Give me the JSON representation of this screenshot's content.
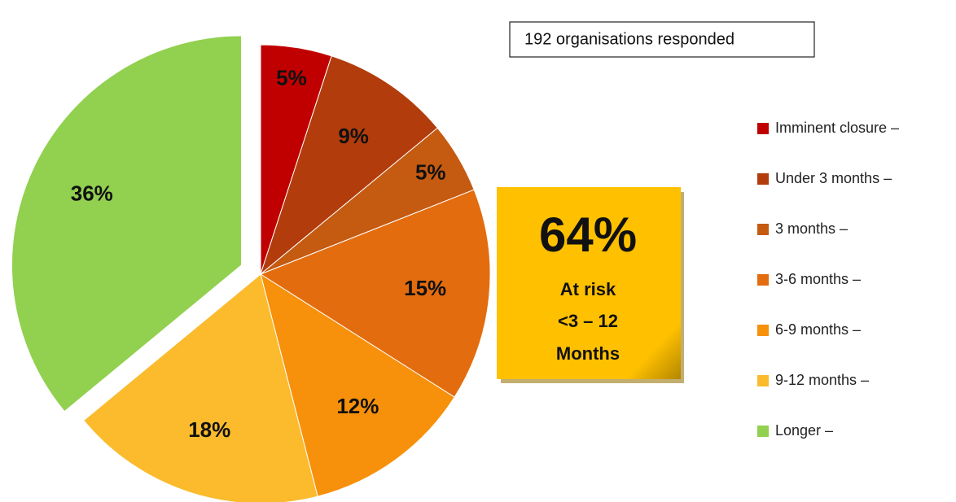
{
  "chart_data": {
    "type": "pie",
    "categories": [
      "Imminent closure –",
      "Under 3 months –",
      "3 months –",
      "3-6 months –",
      "6-9 months –",
      "9-12 months –",
      "Longer –"
    ],
    "values": [
      5,
      9,
      5,
      15,
      12,
      18,
      36
    ],
    "value_labels": [
      "5%",
      "9%",
      "5%",
      "15%",
      "12%",
      "18%",
      "36%"
    ],
    "colors": [
      "#c00000",
      "#b23c0b",
      "#c55a11",
      "#e36c0e",
      "#f7900a",
      "#fbbb2d",
      "#92d050"
    ],
    "label_colors": [
      "#ffffff",
      "#111111",
      "#111111",
      "#111111",
      "#111111",
      "#111111",
      "#111111"
    ],
    "annotations": {
      "responded": "192 organisations responded",
      "big": "64%",
      "line1": "At risk",
      "line2": "<3 – 12",
      "line3": "Months"
    }
  }
}
